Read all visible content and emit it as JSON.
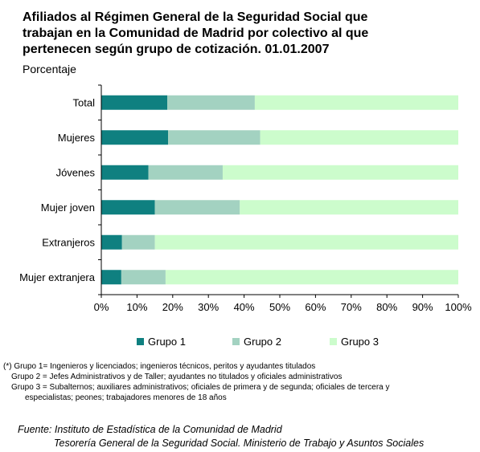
{
  "title_lines": [
    "Afiliados al Régimen General de la Seguridad Social que",
    "trabajan en la Comunidad de Madrid por colectivo al que",
    "pertenecen según grupo de cotización. 01.01.2007"
  ],
  "subtitle": "Porcentaje",
  "chart_data": {
    "type": "bar",
    "orientation": "horizontal",
    "stacked": true,
    "percent_stacked": true,
    "categories": [
      "Total",
      "Mujeres",
      "Jóvenes",
      "Mujer joven",
      "Extranjeros",
      "Mujer extranjera"
    ],
    "series": [
      {
        "name": "Grupo 1",
        "color": "#0f8080",
        "values": [
          18.5,
          18.7,
          13.2,
          15.0,
          5.8,
          5.6
        ]
      },
      {
        "name": "Grupo 2",
        "color": "#a3d2c1",
        "values": [
          24.5,
          25.8,
          20.8,
          23.8,
          9.2,
          12.4
        ]
      },
      {
        "name": "Grupo 3",
        "color": "#ccfccc",
        "values": [
          57.0,
          55.5,
          66.0,
          61.2,
          85.0,
          82.0
        ]
      }
    ],
    "x_ticks": [
      "0%",
      "10%",
      "20%",
      "30%",
      "40%",
      "50%",
      "60%",
      "70%",
      "80%",
      "90%",
      "100%"
    ],
    "xlim": [
      0,
      100
    ],
    "grid": false,
    "legend_position": "bottom"
  },
  "notes": [
    "(*)  Grupo 1= Ingenieros y licenciados; ingenieros técnicos, peritos y ayudantes titulados",
    "Grupo 2 = Jefes Administrativos y de Taller; ayudantes no titulados y oficiales administrativos",
    "Grupo 3 = Subalternos; auxiliares administrativos; oficiales de primera y de segunda; oficiales de tercera y",
    "especialistas; peones; trabajadores menores de 18 años"
  ],
  "source_lines": [
    "Fuente:  Instituto de Estadística de la Comunidad de Madrid",
    "Tesorería General de la Seguridad Social. Ministerio de Trabajo y Asuntos Sociales"
  ]
}
